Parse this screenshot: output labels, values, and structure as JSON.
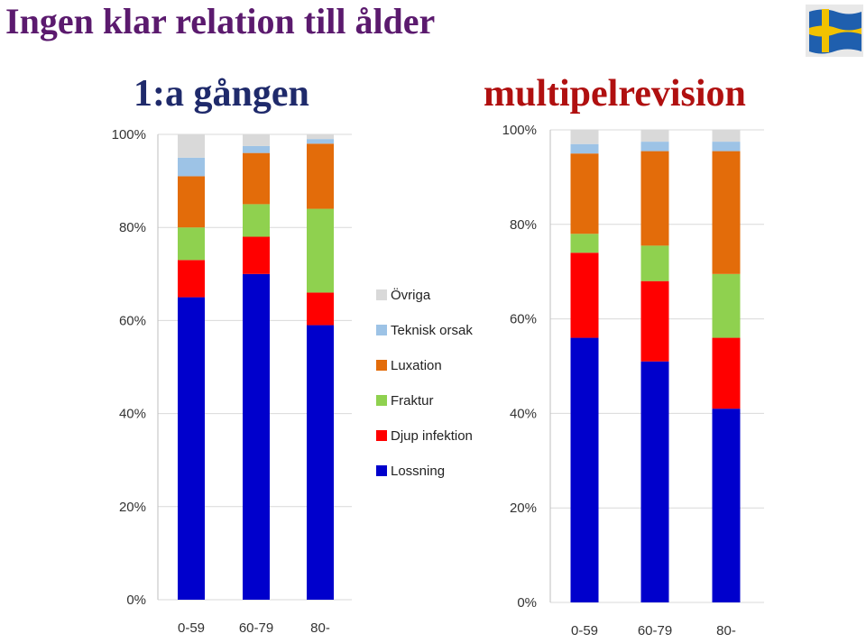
{
  "title": "Ingen klar relation till ålder",
  "subtitles": [
    "1:a gången",
    "multipelrevision"
  ],
  "colors": {
    "Lossning": "#0000cc",
    "Djup infektion": "#ff0000",
    "Fraktur": "#8fd14f",
    "Luxation": "#e36c0a",
    "Teknisk orsak": "#9dc3e6",
    "Övriga": "#d9d9d9"
  },
  "legend": [
    "Övriga",
    "Teknisk orsak",
    "Luxation",
    "Fraktur",
    "Djup infektion",
    "Lossning"
  ],
  "chart_data": [
    {
      "type": "bar",
      "stacked": true,
      "categories": [
        "0-59",
        "60-79",
        "80-"
      ],
      "ylim": [
        0,
        100
      ],
      "yticks": [
        "0%",
        "20%",
        "40%",
        "60%",
        "80%",
        "100%"
      ],
      "grid": true,
      "series": [
        {
          "name": "Lossning",
          "values": [
            65,
            70,
            59
          ]
        },
        {
          "name": "Djup infektion",
          "values": [
            8,
            8,
            7
          ]
        },
        {
          "name": "Fraktur",
          "values": [
            7,
            7,
            18
          ]
        },
        {
          "name": "Luxation",
          "values": [
            11,
            11,
            14
          ]
        },
        {
          "name": "Teknisk orsak",
          "values": [
            4,
            1.5,
            1
          ]
        },
        {
          "name": "Övriga",
          "values": [
            5,
            2.5,
            1
          ]
        }
      ]
    },
    {
      "type": "bar",
      "stacked": true,
      "categories": [
        "0-59",
        "60-79",
        "80-"
      ],
      "ylim": [
        0,
        100
      ],
      "yticks": [
        "0%",
        "20%",
        "40%",
        "60%",
        "80%",
        "100%"
      ],
      "grid": true,
      "series": [
        {
          "name": "Lossning",
          "values": [
            56,
            51,
            41
          ]
        },
        {
          "name": "Djup infektion",
          "values": [
            18,
            17,
            15
          ]
        },
        {
          "name": "Fraktur",
          "values": [
            4,
            7.5,
            13.5
          ]
        },
        {
          "name": "Luxation",
          "values": [
            17,
            20,
            26
          ]
        },
        {
          "name": "Teknisk orsak",
          "values": [
            2,
            2,
            2
          ]
        },
        {
          "name": "Övriga",
          "values": [
            3,
            2.5,
            2.5
          ]
        }
      ]
    }
  ]
}
